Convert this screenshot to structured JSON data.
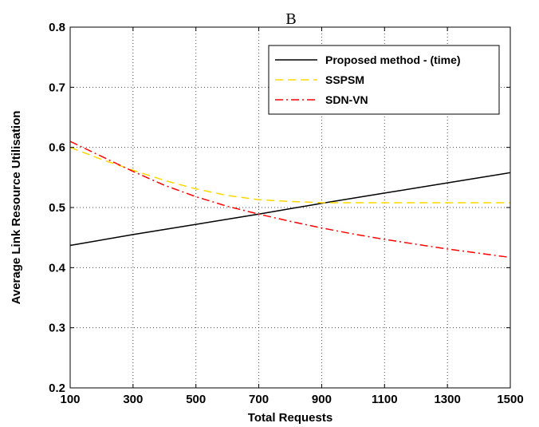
{
  "chart_data": {
    "type": "line",
    "title": "B",
    "xlabel": "Total Requests",
    "ylabel": "Average Link Resource Utilisation",
    "xlim": [
      100,
      1500
    ],
    "ylim": [
      0.2,
      0.8
    ],
    "xticks": [
      100,
      300,
      500,
      700,
      900,
      1100,
      1300,
      1500
    ],
    "yticks": [
      0.2,
      0.3,
      0.4,
      0.5,
      0.6,
      0.7,
      0.8
    ],
    "xtick_labels": [
      "100",
      "300",
      "500",
      "700",
      "900",
      "1100",
      "1300",
      "1500"
    ],
    "ytick_labels": [
      "0.2",
      "0.3",
      "0.4",
      "0.5",
      "0.6",
      "0.7",
      "0.8"
    ],
    "grid": true,
    "legend_position": "top-right",
    "series": [
      {
        "name": "Proposed method - (time)",
        "color": "#000000",
        "style": "solid",
        "x": [
          100,
          300,
          500,
          700,
          900,
          1100,
          1300,
          1500
        ],
        "y": [
          0.437,
          0.455,
          0.472,
          0.489,
          0.507,
          0.524,
          0.541,
          0.558
        ]
      },
      {
        "name": "SSPSM",
        "color": "#FFD700",
        "style": "dashed",
        "x": [
          100,
          200,
          300,
          400,
          500,
          600,
          700,
          800,
          900,
          1000,
          1100,
          1200,
          1300,
          1400,
          1500
        ],
        "y": [
          0.6,
          0.58,
          0.562,
          0.545,
          0.531,
          0.52,
          0.513,
          0.51,
          0.508,
          0.508,
          0.508,
          0.508,
          0.508,
          0.508,
          0.508
        ]
      },
      {
        "name": "SDN-VN",
        "color": "#FF0000",
        "style": "dashdot",
        "x": [
          100,
          200,
          300,
          400,
          500,
          600,
          700,
          800,
          900,
          1000,
          1100,
          1200,
          1300,
          1400,
          1500
        ],
        "y": [
          0.61,
          0.585,
          0.56,
          0.537,
          0.518,
          0.502,
          0.489,
          0.477,
          0.466,
          0.456,
          0.447,
          0.439,
          0.431,
          0.424,
          0.417
        ]
      }
    ]
  }
}
